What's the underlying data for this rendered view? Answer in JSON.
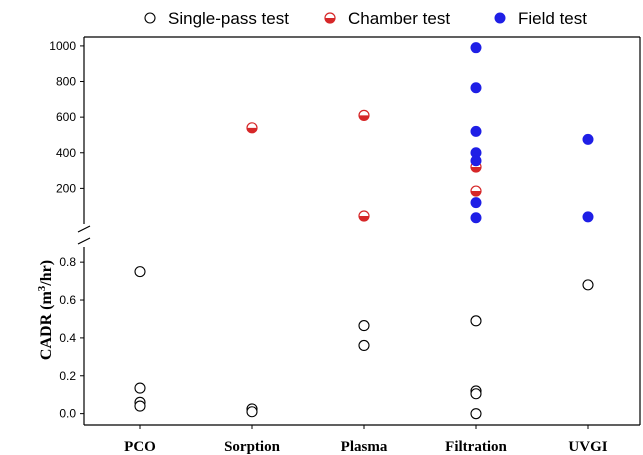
{
  "chart_data": {
    "type": "scatter",
    "ylabel": {
      "main": "CADR (m",
      "sup": "3",
      "tail": "/hr)"
    },
    "categories": [
      "PCO",
      "Sorption",
      "Plasma",
      "Filtration",
      "UVGI"
    ],
    "y_upper": {
      "ticks": [
        "200",
        "400",
        "600",
        "800",
        "1000"
      ],
      "range": [
        0,
        1050
      ]
    },
    "y_lower": {
      "ticks": [
        "0.0",
        "0.2",
        "0.4",
        "0.6",
        "0.8"
      ],
      "range": [
        -0.06,
        0.88
      ]
    },
    "legend_position": "top",
    "series": [
      {
        "name": "Single-pass test",
        "marker": "open-circle",
        "color": "#000000",
        "panel": "lower",
        "points": [
          {
            "category": "PCO",
            "y": 0.75
          },
          {
            "category": "PCO",
            "y": 0.135
          },
          {
            "category": "PCO",
            "y": 0.06
          },
          {
            "category": "PCO",
            "y": 0.04
          },
          {
            "category": "Sorption",
            "y": 0.025
          },
          {
            "category": "Sorption",
            "y": 0.01
          },
          {
            "category": "Plasma",
            "y": 0.465
          },
          {
            "category": "Plasma",
            "y": 0.36
          },
          {
            "category": "Filtration",
            "y": 0.49
          },
          {
            "category": "Filtration",
            "y": 0.12
          },
          {
            "category": "Filtration",
            "y": 0.105
          },
          {
            "category": "Filtration",
            "y": 0.0
          },
          {
            "category": "UVGI",
            "y": 0.68
          }
        ]
      },
      {
        "name": "Chamber test",
        "marker": "half-filled-circle",
        "color": "#d62728",
        "panel": "upper",
        "points": [
          {
            "category": "Sorption",
            "y": 540
          },
          {
            "category": "Plasma",
            "y": 610
          },
          {
            "category": "Plasma",
            "y": 45
          },
          {
            "category": "Filtration",
            "y": 320
          },
          {
            "category": "Filtration",
            "y": 185
          }
        ]
      },
      {
        "name": "Field test",
        "marker": "filled-circle",
        "color": "#1f1fe6",
        "panel": "upper",
        "points": [
          {
            "category": "Filtration",
            "y": 990
          },
          {
            "category": "Filtration",
            "y": 765
          },
          {
            "category": "Filtration",
            "y": 520
          },
          {
            "category": "Filtration",
            "y": 400
          },
          {
            "category": "Filtration",
            "y": 355
          },
          {
            "category": "Filtration",
            "y": 120
          },
          {
            "category": "Filtration",
            "y": 35
          },
          {
            "category": "UVGI",
            "y": 475
          },
          {
            "category": "UVGI",
            "y": 40
          }
        ]
      }
    ]
  }
}
